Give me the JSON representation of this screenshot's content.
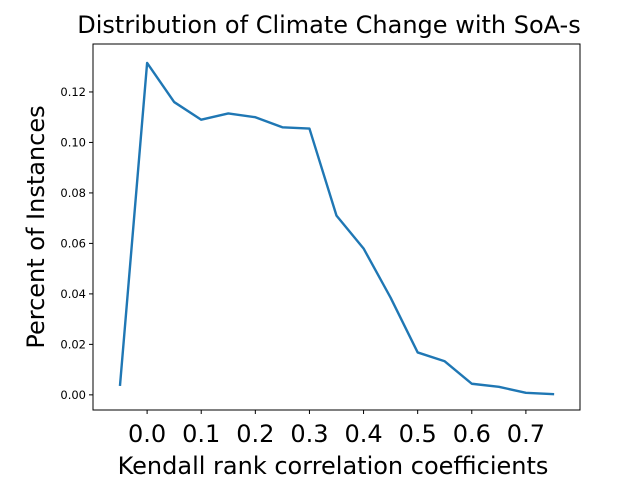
{
  "chart_data": {
    "type": "line",
    "title": "Distribution of Climate Change with SoA-s",
    "xlabel": "Kendall rank correlation coefficients",
    "ylabel": "Percent of Instances",
    "xlim": [
      -0.1,
      0.8
    ],
    "ylim": [
      -0.006,
      0.139
    ],
    "xticks": [
      "0.0",
      "0.1",
      "0.2",
      "0.3",
      "0.4",
      "0.5",
      "0.6",
      "0.7"
    ],
    "yticks": [
      "0.00",
      "0.02",
      "0.04",
      "0.06",
      "0.08",
      "0.10",
      "0.12"
    ],
    "grid": false,
    "series": [
      {
        "color": "#1f77b4",
        "x": [
          -0.05,
          0.0,
          0.05,
          0.1,
          0.15,
          0.2,
          0.25,
          0.3,
          0.35,
          0.4,
          0.45,
          0.5,
          0.55,
          0.6,
          0.65,
          0.7,
          0.75
        ],
        "y": [
          0.004,
          0.1315,
          0.116,
          0.109,
          0.1115,
          0.11,
          0.106,
          0.1055,
          0.071,
          0.058,
          0.0385,
          0.0168,
          0.0133,
          0.0044,
          0.0032,
          0.0008,
          0.0003
        ]
      }
    ]
  }
}
